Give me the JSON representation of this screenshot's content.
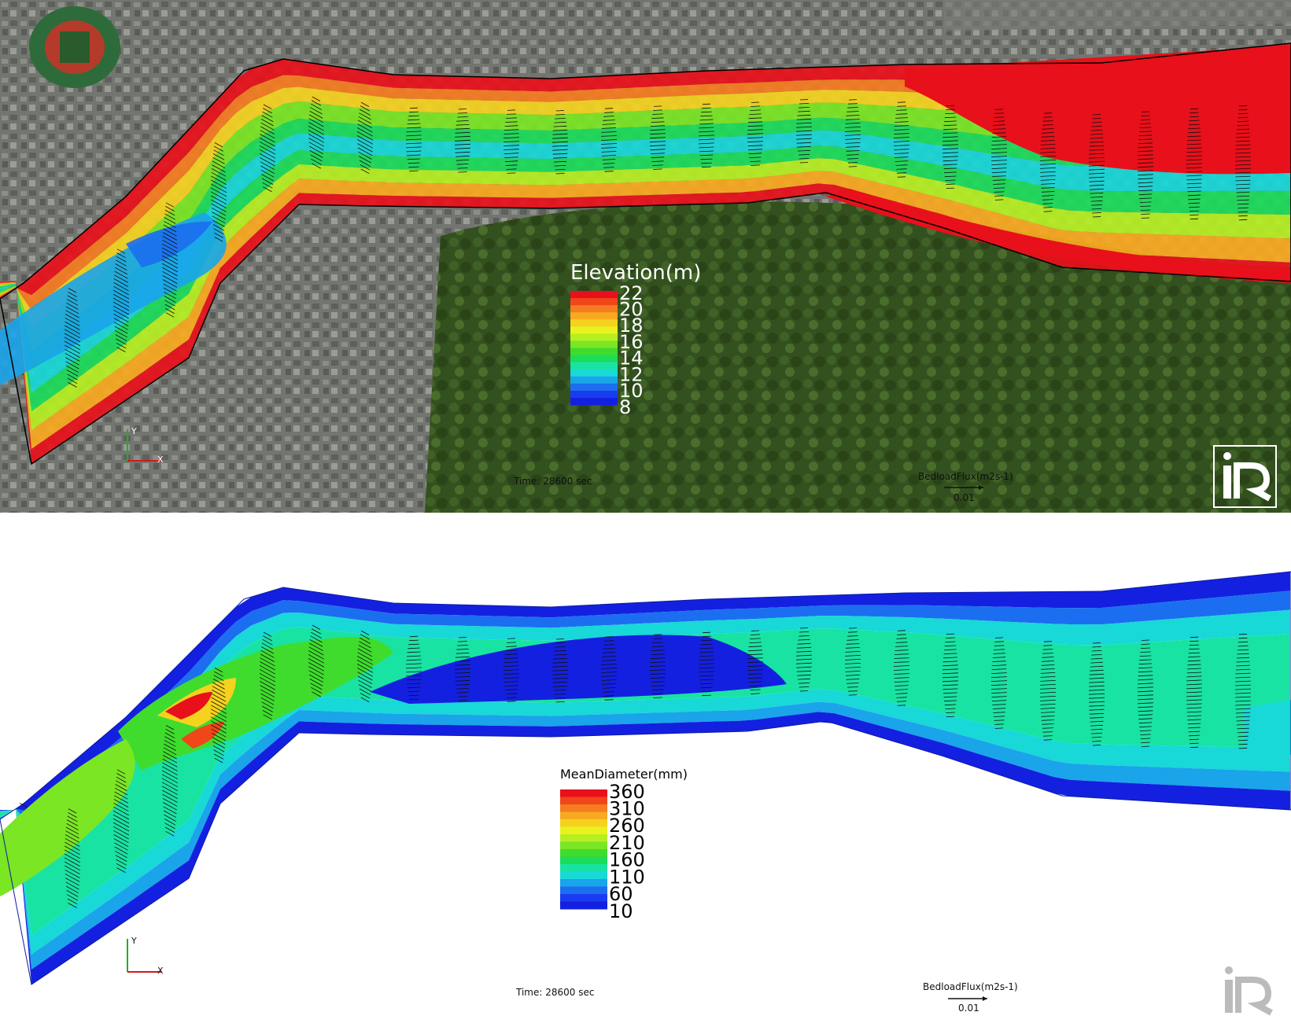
{
  "panels": [
    {
      "id": "elevation",
      "legend": {
        "title": "Elevation(m)",
        "ticks": [
          "22",
          "20",
          "18",
          "16",
          "14",
          "12",
          "10",
          "8"
        ],
        "title_color": "#ffffff",
        "tick_color": "#ffffff"
      },
      "time_label": "Time: 28600 sec",
      "vector_legend": {
        "title": "BedloadFlux(m2s-1)",
        "scale": "0.01"
      },
      "axes": {
        "x": "X",
        "y": "Y"
      },
      "background": "satellite-aerial-map",
      "logo": "iric-logo"
    },
    {
      "id": "mean-diameter",
      "legend": {
        "title": "MeanDiameter(mm)",
        "ticks": [
          "360",
          "310",
          "260",
          "210",
          "160",
          "110",
          "60",
          "10"
        ],
        "title_color": "#000000",
        "tick_color": "#000000"
      },
      "time_label": "Time: 28600 sec",
      "vector_legend": {
        "title": "BedloadFlux(m2s-1)",
        "scale": "0.01"
      },
      "axes": {
        "x": "X",
        "y": "Y"
      },
      "background": "white",
      "logo": "iric-logo"
    }
  ],
  "colors": {
    "scale": [
      "#e8101a",
      "#f0461a",
      "#f57c20",
      "#f9a91f",
      "#f5d21e",
      "#e9f21e",
      "#b6ef21",
      "#7be624",
      "#3fdc2e",
      "#1cdc5a",
      "#19e3a3",
      "#18d8d8",
      "#1aa4ea",
      "#1c6ef0",
      "#1a3cf0",
      "#1420e0"
    ],
    "satellite_urban": "#6b6f68",
    "satellite_forest": "#2f4a1f",
    "river_edge": "#000000"
  }
}
